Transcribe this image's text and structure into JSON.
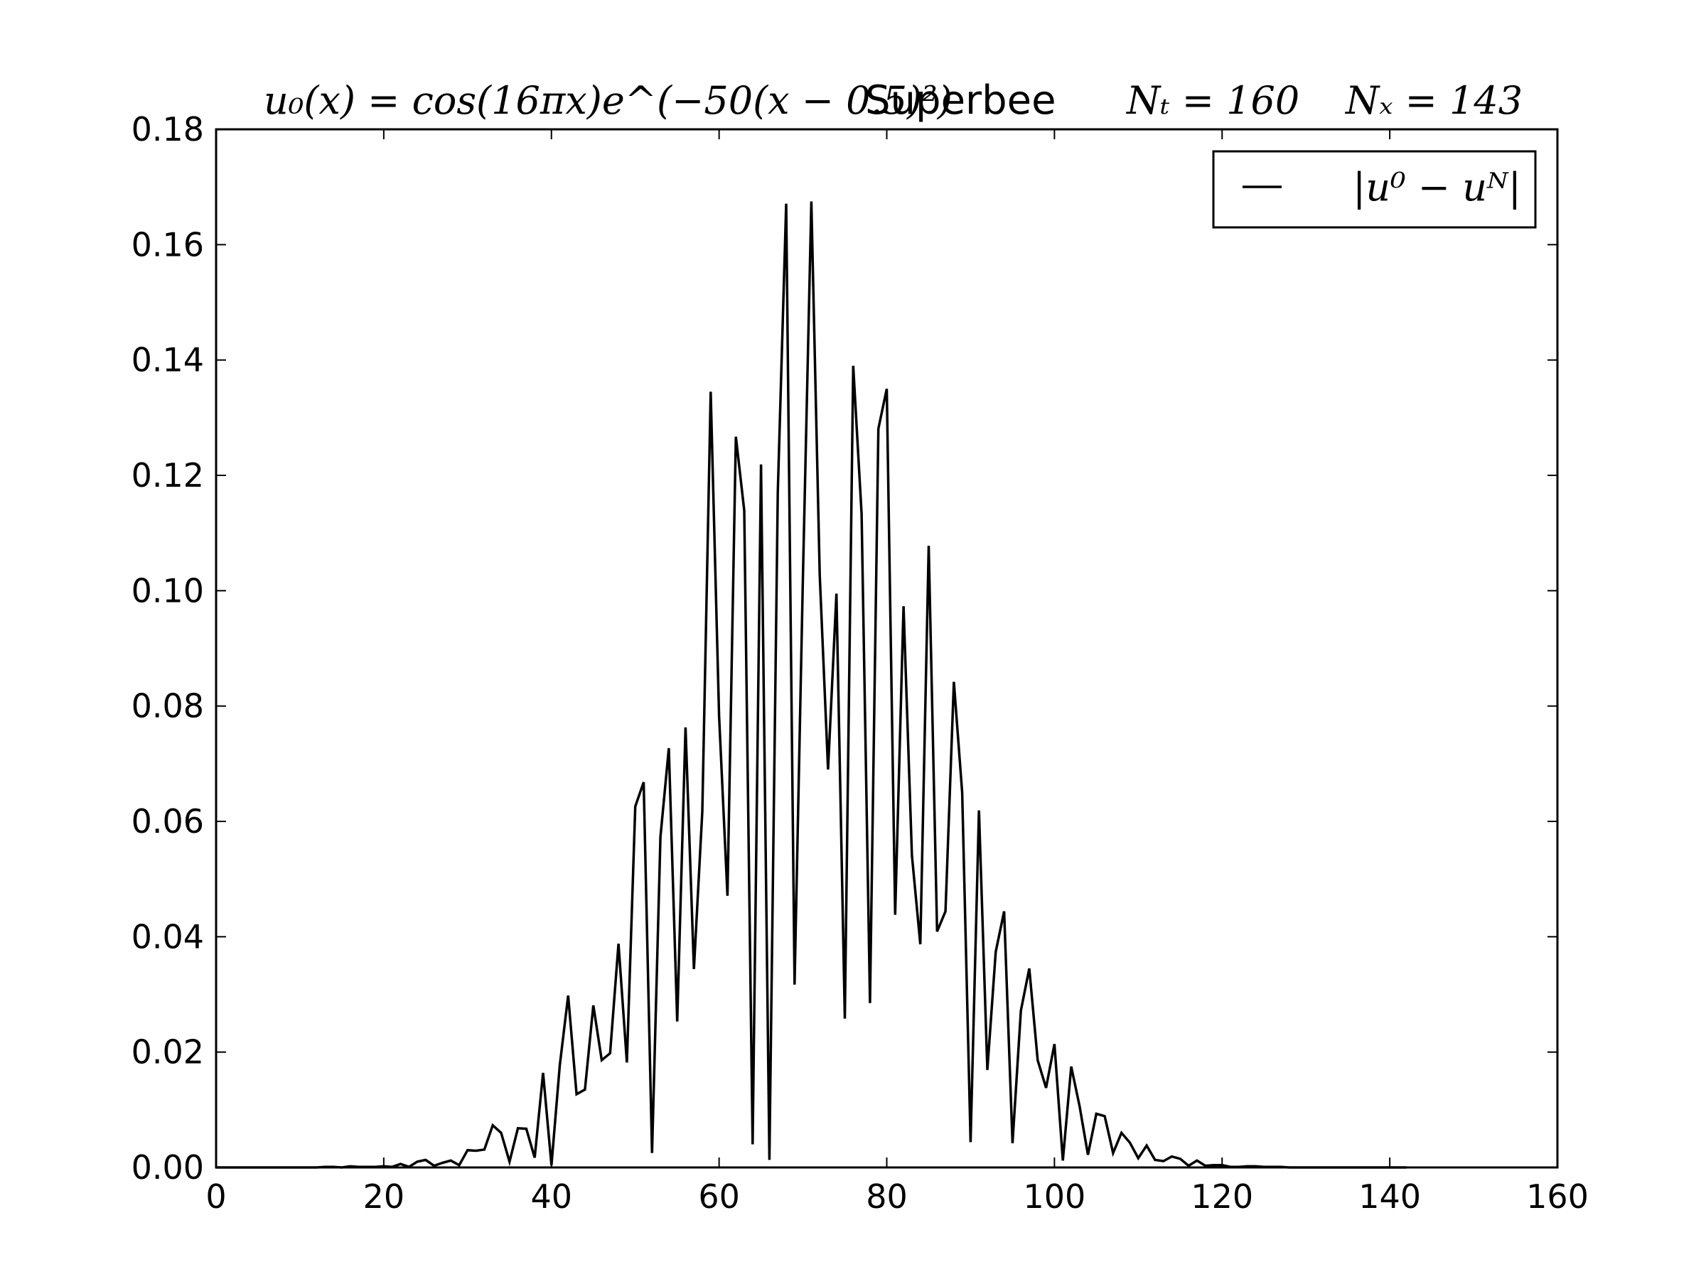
{
  "chart_data": {
    "type": "line",
    "title": {
      "formula": "u₀(x) = cos(16πx)e^(−50(x − 0.5)²)",
      "scheme": "Superbee",
      "nt": "Nₜ = 160",
      "nx": "Nₓ = 143"
    },
    "xlabel": "",
    "ylabel": "",
    "xlim": [
      0,
      160
    ],
    "ylim": [
      0,
      0.18
    ],
    "xticks": [
      0,
      20,
      40,
      60,
      80,
      100,
      120,
      140,
      160
    ],
    "xtick_labels": [
      "0",
      "20",
      "40",
      "60",
      "80",
      "100",
      "120",
      "140",
      "160"
    ],
    "yticks": [
      0,
      0.02,
      0.04,
      0.06,
      0.08,
      0.1,
      0.12,
      0.14,
      0.16,
      0.18
    ],
    "ytick_labels": [
      "0.00",
      "0.02",
      "0.04",
      "0.06",
      "0.08",
      "0.10",
      "0.12",
      "0.14",
      "0.16",
      "0.18"
    ],
    "grid": false,
    "legend_position": "top-right",
    "series": [
      {
        "name": "|u⁰ − uᴺ|",
        "color": "#000000",
        "x": [
          0,
          1,
          2,
          3,
          4,
          5,
          6,
          7,
          8,
          9,
          10,
          11,
          12,
          13,
          14,
          15,
          16,
          17,
          18,
          19,
          20,
          21,
          22,
          23,
          24,
          25,
          26,
          27,
          28,
          29,
          30,
          31,
          32,
          33,
          34,
          35,
          36,
          37,
          38,
          39,
          40,
          41,
          42,
          43,
          44,
          45,
          46,
          47,
          48,
          49,
          50,
          51,
          52,
          53,
          54,
          55,
          56,
          57,
          58,
          59,
          60,
          61,
          62,
          63,
          64,
          65,
          66,
          67,
          68,
          69,
          70,
          71,
          72,
          73,
          74,
          75,
          76,
          77,
          78,
          79,
          80,
          81,
          82,
          83,
          84,
          85,
          86,
          87,
          88,
          89,
          90,
          91,
          92,
          93,
          94,
          95,
          96,
          97,
          98,
          99,
          100,
          101,
          102,
          103,
          104,
          105,
          106,
          107,
          108,
          109,
          110,
          111,
          112,
          113,
          114,
          115,
          116,
          117,
          118,
          119,
          120,
          121,
          122,
          123,
          124,
          125,
          126,
          127,
          128,
          129,
          130,
          131,
          132,
          133,
          134,
          135,
          136,
          137,
          138,
          139,
          140,
          141,
          142
        ],
        "y": [
          0,
          0,
          0,
          0,
          0,
          0,
          0,
          0,
          0,
          0,
          0,
          0,
          0,
          0.0001,
          0.0001,
          0,
          0.0002,
          0.0001,
          0.0001,
          0.0001,
          0.0002,
          0.0001,
          0.0006,
          0.0001,
          0.001,
          0.0013,
          0.0003,
          0.0008,
          0.0012,
          0.0004,
          0.003,
          0.0029,
          0.0031,
          0.0073,
          0.006,
          0.001,
          0.0068,
          0.0067,
          0.0017,
          0.0164,
          0.0004,
          0.0177,
          0.0298,
          0.0127,
          0.0135,
          0.0281,
          0.0186,
          0.0198,
          0.0388,
          0.0182,
          0.0626,
          0.0668,
          0.0025,
          0.0573,
          0.0727,
          0.0253,
          0.0763,
          0.0344,
          0.0617,
          0.1345,
          0.0783,
          0.0471,
          0.1267,
          0.1139,
          0.004,
          0.1219,
          0.0013,
          0.1171,
          0.1671,
          0.0317,
          0.1027,
          0.1675,
          0.1027,
          0.069,
          0.0995,
          0.0258,
          0.139,
          0.1133,
          0.0285,
          0.1281,
          0.135,
          0.0438,
          0.0973,
          0.0541,
          0.0387,
          0.1078,
          0.0409,
          0.0444,
          0.0842,
          0.065,
          0.0044,
          0.0619,
          0.0169,
          0.0374,
          0.0444,
          0.0042,
          0.0272,
          0.0345,
          0.0186,
          0.0138,
          0.0214,
          0.0012,
          0.0175,
          0.0106,
          0.0022,
          0.0093,
          0.0089,
          0.0025,
          0.006,
          0.0043,
          0.0016,
          0.0038,
          0.0013,
          0.0011,
          0.0019,
          0.0015,
          0.0003,
          0.0012,
          0.0003,
          0.0004,
          0.0004,
          0.0001,
          0.0001,
          0.0002,
          0.0002,
          0.0001,
          0.0001,
          0.0001,
          0,
          0,
          0,
          0,
          0,
          0,
          0,
          0,
          0,
          0,
          0,
          0,
          0,
          0,
          0
        ]
      }
    ]
  }
}
